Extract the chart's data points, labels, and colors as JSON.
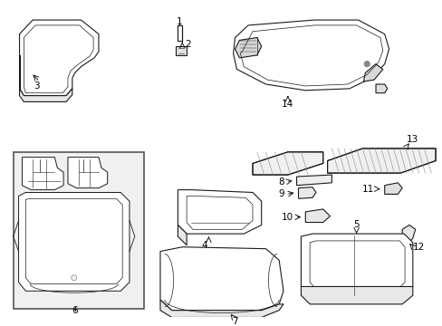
{
  "bg": "#ffffff",
  "lc": "#1a1a1a",
  "lw": 0.8,
  "fill": "#ffffff",
  "fig_w": 4.89,
  "fig_h": 3.6,
  "dpi": 100,
  "fs": 7.5,
  "hatch_fill": "#cccccc"
}
